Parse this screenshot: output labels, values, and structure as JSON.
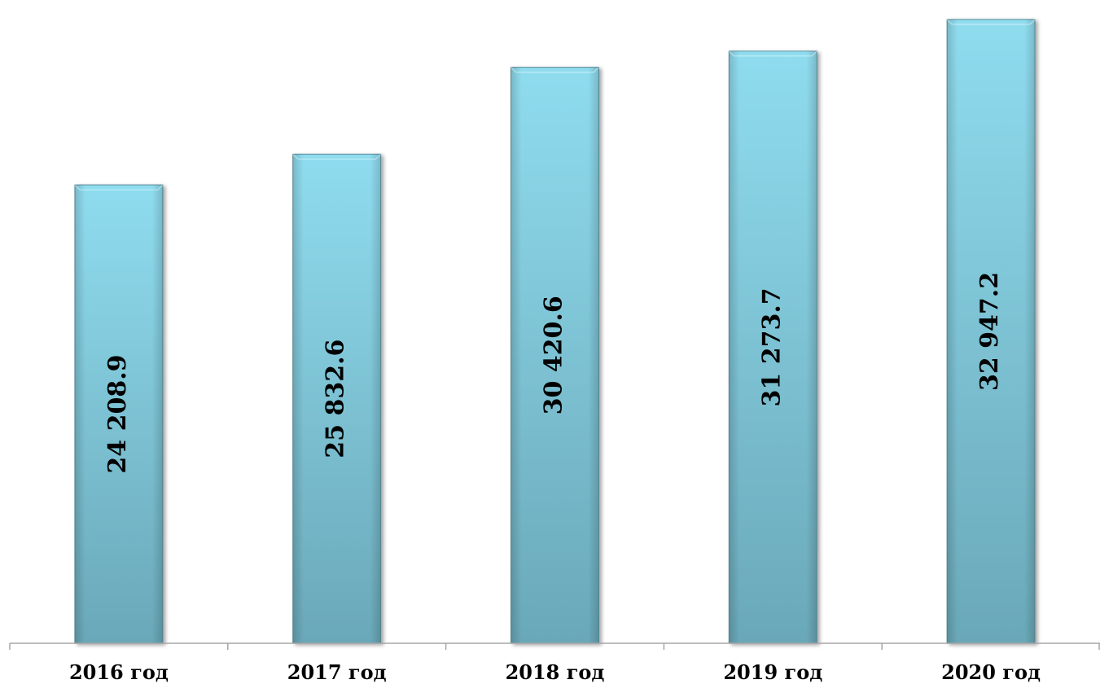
{
  "chart_data": {
    "type": "bar",
    "title": "",
    "xlabel": "",
    "ylabel": "",
    "categories": [
      "2016 год",
      "2017 год",
      "2018 год",
      "2019 год",
      "2020 год"
    ],
    "values": [
      24208.9,
      25832.6,
      30420.6,
      31273.7,
      32947.2
    ],
    "data_labels": [
      "24 208.9",
      "25 832.6",
      "30 420.6",
      "31 273.7",
      "32 947.2"
    ],
    "ylim": [
      0,
      33500
    ],
    "grid": false,
    "legend": "none",
    "label_orientation": "vertical",
    "colors": {
      "bar_top": "#8fdcef",
      "bar_bottom": "#6aa8b8",
      "bar_edge": "#5d8f9b",
      "axis": "#a6a6a6"
    }
  }
}
